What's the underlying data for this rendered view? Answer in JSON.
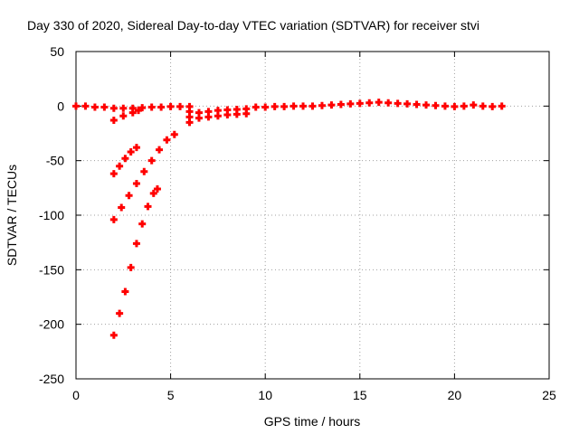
{
  "chart_data": {
    "type": "scatter",
    "title": "Day 330 of 2020, Sidereal Day-to-day VTEC variation (SDTVAR) for receiver stvi",
    "xlabel": "GPS time / hours",
    "ylabel": "SDTVAR / TECUs",
    "xlim": [
      0,
      25
    ],
    "ylim": [
      -250,
      50
    ],
    "xticks": [
      0,
      5,
      10,
      15,
      20,
      25
    ],
    "yticks": [
      -250,
      -200,
      -150,
      -100,
      -50,
      0,
      50
    ],
    "grid": true,
    "marker": "plus",
    "color": "#ff0000",
    "series": [
      {
        "points": [
          [
            0.0,
            0
          ],
          [
            0.5,
            0
          ],
          [
            1.0,
            -1
          ],
          [
            1.5,
            -1
          ],
          [
            2.0,
            -2
          ],
          [
            2.5,
            -2
          ],
          [
            3.0,
            -2
          ],
          [
            3.5,
            -1.5
          ],
          [
            4.0,
            -1
          ],
          [
            4.5,
            -1
          ],
          [
            5.0,
            -0.5
          ],
          [
            5.5,
            -0.5
          ],
          [
            6.0,
            -0.5
          ],
          [
            2.0,
            -13
          ],
          [
            2.5,
            -9
          ],
          [
            3.0,
            -6
          ],
          [
            3.3,
            -4
          ],
          [
            2.0,
            -62
          ],
          [
            2.3,
            -55
          ],
          [
            2.6,
            -48
          ],
          [
            2.9,
            -42
          ],
          [
            3.2,
            -38
          ],
          [
            2.0,
            -104
          ],
          [
            2.4,
            -93
          ],
          [
            2.8,
            -82
          ],
          [
            3.2,
            -71
          ],
          [
            3.6,
            -60
          ],
          [
            4.0,
            -50
          ],
          [
            4.4,
            -40
          ],
          [
            4.8,
            -31
          ],
          [
            5.2,
            -26
          ],
          [
            2.0,
            -210
          ],
          [
            2.3,
            -190
          ],
          [
            2.6,
            -170
          ],
          [
            2.9,
            -148
          ],
          [
            3.2,
            -126
          ],
          [
            3.5,
            -108
          ],
          [
            3.8,
            -92
          ],
          [
            4.1,
            -80
          ],
          [
            4.3,
            -76
          ],
          [
            6.0,
            -15
          ],
          [
            6.0,
            -10
          ],
          [
            6.0,
            -5
          ],
          [
            6.5,
            -11
          ],
          [
            7.0,
            -10
          ],
          [
            7.5,
            -9
          ],
          [
            8.0,
            -8
          ],
          [
            8.5,
            -7.5
          ],
          [
            9.0,
            -7
          ],
          [
            6.5,
            -6
          ],
          [
            7.0,
            -5
          ],
          [
            7.5,
            -4
          ],
          [
            8.0,
            -3.5
          ],
          [
            8.5,
            -3
          ],
          [
            9.0,
            -2.5
          ],
          [
            9.5,
            -1
          ],
          [
            10.0,
            -1
          ],
          [
            10.5,
            -0.5
          ],
          [
            11.0,
            -0.5
          ],
          [
            11.5,
            0
          ],
          [
            12.0,
            0
          ],
          [
            12.5,
            0
          ],
          [
            13.0,
            0.5
          ],
          [
            13.5,
            1
          ],
          [
            14.0,
            1.5
          ],
          [
            14.5,
            2
          ],
          [
            15.0,
            2.5
          ],
          [
            15.5,
            3
          ],
          [
            16.0,
            3.5
          ],
          [
            16.5,
            3
          ],
          [
            17.0,
            2.5
          ],
          [
            17.5,
            2
          ],
          [
            18.0,
            1.5
          ],
          [
            18.5,
            1
          ],
          [
            19.0,
            0.5
          ],
          [
            19.5,
            0
          ],
          [
            20.0,
            -0.5
          ],
          [
            20.5,
            0
          ],
          [
            21.0,
            1
          ],
          [
            21.5,
            0
          ],
          [
            22.0,
            -0.5
          ],
          [
            22.5,
            0
          ]
        ]
      }
    ]
  }
}
